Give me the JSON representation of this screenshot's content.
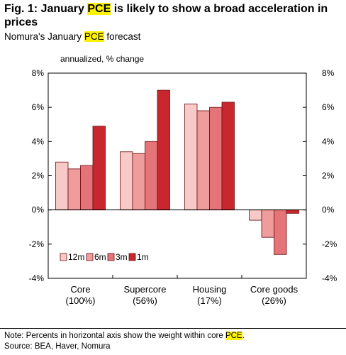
{
  "title": {
    "prefix": "Fig. 1: January ",
    "highlight": "PCE",
    "suffix": " is likely to show a broad acceleration in prices"
  },
  "subtitle": {
    "prefix": "Nomura's January ",
    "highlight": "PCE",
    "suffix": " forecast"
  },
  "footer": {
    "note_prefix": "Note: Percents in horizontal axis show the weight within core ",
    "note_highlight": "PCE",
    "note_suffix": ".",
    "source": "Source: BEA, Haver, Nomura"
  },
  "colors": {
    "highlight": "#fff200",
    "series": [
      "#f7c9c7",
      "#ee9d9c",
      "#e47477",
      "#c8272e"
    ]
  },
  "chart_data": {
    "type": "bar",
    "unit_label": "annualized, % change",
    "categories": [
      {
        "name": "Core",
        "weight": "(100%)"
      },
      {
        "name": "Supercore",
        "weight": "(56%)"
      },
      {
        "name": "Housing",
        "weight": "(17%)"
      },
      {
        "name": "Core goods",
        "weight": "(26%)"
      }
    ],
    "series": [
      {
        "name": "12m",
        "values": [
          2.8,
          3.4,
          6.2,
          -0.6
        ]
      },
      {
        "name": "6m",
        "values": [
          2.4,
          3.3,
          5.8,
          -1.6
        ]
      },
      {
        "name": "3m",
        "values": [
          2.6,
          4.0,
          6.0,
          -2.6
        ]
      },
      {
        "name": "1m",
        "values": [
          4.9,
          7.0,
          6.3,
          -0.2
        ]
      }
    ],
    "ylim": [
      -4,
      8
    ],
    "yticks": [
      "8%",
      "6%",
      "4%",
      "2%",
      "0%",
      "-2%",
      "-4%"
    ],
    "ytick_values": [
      8,
      6,
      4,
      2,
      0,
      -2,
      -4
    ],
    "legend_position": "lower-left",
    "grid": false
  }
}
